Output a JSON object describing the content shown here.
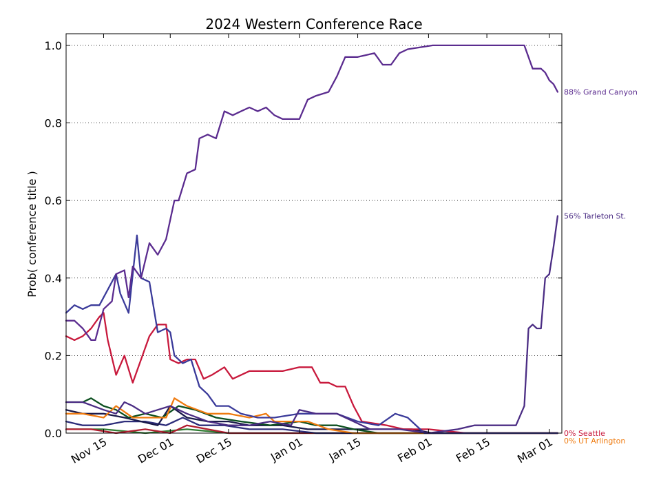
{
  "chart_data": {
    "type": "line",
    "title": "2024 Western Conference Race",
    "xlabel": "",
    "ylabel": "Prob( conference title )",
    "x_axis": {
      "start": "2023-11-06",
      "end": "2024-03-04",
      "ticks": [
        {
          "date": "2023-11-15",
          "label": "Nov 15"
        },
        {
          "date": "2023-12-01",
          "label": "Dec 01"
        },
        {
          "date": "2023-12-15",
          "label": "Dec 15"
        },
        {
          "date": "2024-01-01",
          "label": "Jan 01"
        },
        {
          "date": "2024-01-15",
          "label": "Jan 15"
        },
        {
          "date": "2024-02-01",
          "label": "Feb 01"
        },
        {
          "date": "2024-02-15",
          "label": "Feb 15"
        },
        {
          "date": "2024-03-01",
          "label": "Mar 01"
        }
      ]
    },
    "ylim": [
      0,
      1.03
    ],
    "y_ticks": [
      {
        "value": 0.0,
        "label": "0.0"
      },
      {
        "value": 0.2,
        "label": "0.2"
      },
      {
        "value": 0.4,
        "label": "0.4"
      },
      {
        "value": 0.6,
        "label": "0.6"
      },
      {
        "value": 0.8,
        "label": "0.8"
      },
      {
        "value": 1.0,
        "label": "1.0"
      }
    ],
    "grid": "horizontal dotted",
    "series": [
      {
        "name": "Grand Canyon",
        "color": "#5b2c8f",
        "end_label": "88% Grand Canyon",
        "points": [
          [
            "2023-11-06",
            0.29
          ],
          [
            "2023-11-08",
            0.29
          ],
          [
            "2023-11-10",
            0.27
          ],
          [
            "2023-11-12",
            0.24
          ],
          [
            "2023-11-13",
            0.24
          ],
          [
            "2023-11-15",
            0.32
          ],
          [
            "2023-11-17",
            0.34
          ],
          [
            "2023-11-18",
            0.41
          ],
          [
            "2023-11-20",
            0.42
          ],
          [
            "2023-11-21",
            0.35
          ],
          [
            "2023-11-22",
            0.43
          ],
          [
            "2023-11-24",
            0.4
          ],
          [
            "2023-11-26",
            0.49
          ],
          [
            "2023-11-28",
            0.46
          ],
          [
            "2023-11-30",
            0.5
          ],
          [
            "2023-12-02",
            0.6
          ],
          [
            "2023-12-03",
            0.6
          ],
          [
            "2023-12-05",
            0.67
          ],
          [
            "2023-12-07",
            0.68
          ],
          [
            "2023-12-08",
            0.76
          ],
          [
            "2023-12-10",
            0.77
          ],
          [
            "2023-12-12",
            0.76
          ],
          [
            "2023-12-14",
            0.83
          ],
          [
            "2023-12-16",
            0.82
          ],
          [
            "2023-12-18",
            0.83
          ],
          [
            "2023-12-20",
            0.84
          ],
          [
            "2023-12-22",
            0.83
          ],
          [
            "2023-12-24",
            0.84
          ],
          [
            "2023-12-26",
            0.82
          ],
          [
            "2023-12-28",
            0.81
          ],
          [
            "2023-12-30",
            0.81
          ],
          [
            "2024-01-01",
            0.81
          ],
          [
            "2024-01-03",
            0.86
          ],
          [
            "2024-01-05",
            0.87
          ],
          [
            "2024-01-08",
            0.88
          ],
          [
            "2024-01-10",
            0.92
          ],
          [
            "2024-01-12",
            0.97
          ],
          [
            "2024-01-15",
            0.97
          ],
          [
            "2024-01-19",
            0.98
          ],
          [
            "2024-01-21",
            0.95
          ],
          [
            "2024-01-23",
            0.95
          ],
          [
            "2024-01-25",
            0.98
          ],
          [
            "2024-01-27",
            0.99
          ],
          [
            "2024-02-02",
            1.0
          ],
          [
            "2024-02-10",
            1.0
          ],
          [
            "2024-02-20",
            1.0
          ],
          [
            "2024-02-24",
            1.0
          ],
          [
            "2024-02-26",
            0.94
          ],
          [
            "2024-02-28",
            0.94
          ],
          [
            "2024-02-29",
            0.93
          ],
          [
            "2024-03-01",
            0.91
          ],
          [
            "2024-03-02",
            0.9
          ],
          [
            "2024-03-03",
            0.88
          ]
        ]
      },
      {
        "name": "Tarleton St.",
        "color": "#4b2d84",
        "end_label": "56% Tarleton St.",
        "points": [
          [
            "2023-11-06",
            0.08
          ],
          [
            "2023-11-10",
            0.08
          ],
          [
            "2023-11-15",
            0.06
          ],
          [
            "2023-11-18",
            0.05
          ],
          [
            "2023-11-20",
            0.08
          ],
          [
            "2023-11-22",
            0.07
          ],
          [
            "2023-11-25",
            0.05
          ],
          [
            "2023-11-28",
            0.06
          ],
          [
            "2023-12-01",
            0.07
          ],
          [
            "2023-12-05",
            0.05
          ],
          [
            "2023-12-10",
            0.03
          ],
          [
            "2023-12-15",
            0.02
          ],
          [
            "2023-12-20",
            0.02
          ],
          [
            "2023-12-25",
            0.03
          ],
          [
            "2023-12-30",
            0.02
          ],
          [
            "2024-01-01",
            0.06
          ],
          [
            "2024-01-05",
            0.05
          ],
          [
            "2024-01-10",
            0.05
          ],
          [
            "2024-01-14",
            0.03
          ],
          [
            "2024-01-18",
            0.01
          ],
          [
            "2024-01-25",
            0.01
          ],
          [
            "2024-02-01",
            0.0
          ],
          [
            "2024-02-08",
            0.01
          ],
          [
            "2024-02-12",
            0.02
          ],
          [
            "2024-02-18",
            0.02
          ],
          [
            "2024-02-22",
            0.02
          ],
          [
            "2024-02-24",
            0.07
          ],
          [
            "2024-02-25",
            0.27
          ],
          [
            "2024-02-26",
            0.28
          ],
          [
            "2024-02-27",
            0.27
          ],
          [
            "2024-02-28",
            0.27
          ],
          [
            "2024-02-29",
            0.4
          ],
          [
            "2024-03-01",
            0.41
          ],
          [
            "2024-03-02",
            0.48
          ],
          [
            "2024-03-03",
            0.56
          ]
        ]
      },
      {
        "name": "",
        "color": "#3b3b9a",
        "end_label": "",
        "points": [
          [
            "2023-11-06",
            0.31
          ],
          [
            "2023-11-08",
            0.33
          ],
          [
            "2023-11-10",
            0.32
          ],
          [
            "2023-11-12",
            0.33
          ],
          [
            "2023-11-14",
            0.33
          ],
          [
            "2023-11-16",
            0.37
          ],
          [
            "2023-11-18",
            0.41
          ],
          [
            "2023-11-19",
            0.36
          ],
          [
            "2023-11-21",
            0.31
          ],
          [
            "2023-11-23",
            0.51
          ],
          [
            "2023-11-24",
            0.4
          ],
          [
            "2023-11-26",
            0.39
          ],
          [
            "2023-11-28",
            0.26
          ],
          [
            "2023-11-30",
            0.27
          ],
          [
            "2023-12-01",
            0.26
          ],
          [
            "2023-12-02",
            0.2
          ],
          [
            "2023-12-04",
            0.18
          ],
          [
            "2023-12-06",
            0.19
          ],
          [
            "2023-12-08",
            0.12
          ],
          [
            "2023-12-10",
            0.1
          ],
          [
            "2023-12-12",
            0.07
          ],
          [
            "2023-12-15",
            0.07
          ],
          [
            "2023-12-18",
            0.05
          ],
          [
            "2023-12-22",
            0.04
          ],
          [
            "2023-12-26",
            0.04
          ],
          [
            "2024-01-01",
            0.05
          ],
          [
            "2024-01-05",
            0.05
          ],
          [
            "2024-01-10",
            0.05
          ],
          [
            "2024-01-15",
            0.03
          ],
          [
            "2024-01-20",
            0.02
          ],
          [
            "2024-01-24",
            0.05
          ],
          [
            "2024-01-27",
            0.04
          ],
          [
            "2024-01-31",
            0.0
          ],
          [
            "2024-02-15",
            0.0
          ],
          [
            "2024-03-03",
            0.0
          ]
        ]
      },
      {
        "name": "Seattle",
        "color": "#c8193c",
        "end_label": "0% Seattle",
        "points": [
          [
            "2023-11-06",
            0.25
          ],
          [
            "2023-11-08",
            0.24
          ],
          [
            "2023-11-10",
            0.25
          ],
          [
            "2023-11-12",
            0.27
          ],
          [
            "2023-11-14",
            0.3
          ],
          [
            "2023-11-15",
            0.31
          ],
          [
            "2023-11-16",
            0.24
          ],
          [
            "2023-11-18",
            0.15
          ],
          [
            "2023-11-20",
            0.2
          ],
          [
            "2023-11-22",
            0.13
          ],
          [
            "2023-11-24",
            0.19
          ],
          [
            "2023-11-26",
            0.25
          ],
          [
            "2023-11-28",
            0.28
          ],
          [
            "2023-11-30",
            0.28
          ],
          [
            "2023-12-01",
            0.19
          ],
          [
            "2023-12-03",
            0.18
          ],
          [
            "2023-12-05",
            0.19
          ],
          [
            "2023-12-07",
            0.19
          ],
          [
            "2023-12-09",
            0.14
          ],
          [
            "2023-12-11",
            0.15
          ],
          [
            "2023-12-14",
            0.17
          ],
          [
            "2023-12-16",
            0.14
          ],
          [
            "2023-12-20",
            0.16
          ],
          [
            "2023-12-24",
            0.16
          ],
          [
            "2023-12-28",
            0.16
          ],
          [
            "2024-01-01",
            0.17
          ],
          [
            "2024-01-04",
            0.17
          ],
          [
            "2024-01-06",
            0.13
          ],
          [
            "2024-01-08",
            0.13
          ],
          [
            "2024-01-10",
            0.12
          ],
          [
            "2024-01-12",
            0.12
          ],
          [
            "2024-01-14",
            0.07
          ],
          [
            "2024-01-16",
            0.03
          ],
          [
            "2024-01-22",
            0.02
          ],
          [
            "2024-01-26",
            0.01
          ],
          [
            "2024-02-01",
            0.01
          ],
          [
            "2024-02-10",
            0.0
          ],
          [
            "2024-03-03",
            0.0
          ]
        ]
      },
      {
        "name": "UT Arlington",
        "color": "#ef7b10",
        "end_label": "0% UT Arlington",
        "points": [
          [
            "2023-11-06",
            0.05
          ],
          [
            "2023-11-10",
            0.05
          ],
          [
            "2023-11-15",
            0.04
          ],
          [
            "2023-11-18",
            0.07
          ],
          [
            "2023-11-22",
            0.04
          ],
          [
            "2023-11-26",
            0.04
          ],
          [
            "2023-11-30",
            0.04
          ],
          [
            "2023-12-02",
            0.09
          ],
          [
            "2023-12-05",
            0.07
          ],
          [
            "2023-12-10",
            0.05
          ],
          [
            "2023-12-15",
            0.05
          ],
          [
            "2023-12-20",
            0.04
          ],
          [
            "2023-12-24",
            0.05
          ],
          [
            "2023-12-26",
            0.03
          ],
          [
            "2023-12-30",
            0.03
          ],
          [
            "2024-01-03",
            0.03
          ],
          [
            "2024-01-08",
            0.01
          ],
          [
            "2024-01-14",
            0.0
          ],
          [
            "2024-03-03",
            0.0
          ]
        ]
      },
      {
        "name": "",
        "color": "#0b4f1f",
        "end_label": "",
        "points": [
          [
            "2023-11-06",
            0.08
          ],
          [
            "2023-11-10",
            0.08
          ],
          [
            "2023-11-12",
            0.09
          ],
          [
            "2023-11-15",
            0.07
          ],
          [
            "2023-11-18",
            0.06
          ],
          [
            "2023-11-21",
            0.04
          ],
          [
            "2023-11-25",
            0.05
          ],
          [
            "2023-11-29",
            0.04
          ],
          [
            "2023-12-03",
            0.07
          ],
          [
            "2023-12-07",
            0.06
          ],
          [
            "2023-12-12",
            0.04
          ],
          [
            "2023-12-18",
            0.03
          ],
          [
            "2023-12-25",
            0.02
          ],
          [
            "2024-01-01",
            0.03
          ],
          [
            "2024-01-05",
            0.02
          ],
          [
            "2024-01-10",
            0.02
          ],
          [
            "2024-01-14",
            0.01
          ],
          [
            "2024-01-20",
            0.0
          ],
          [
            "2024-03-03",
            0.0
          ]
        ]
      },
      {
        "name": "",
        "color": "#1a1a4a",
        "end_label": "",
        "points": [
          [
            "2023-11-06",
            0.06
          ],
          [
            "2023-11-10",
            0.05
          ],
          [
            "2023-11-15",
            0.05
          ],
          [
            "2023-11-20",
            0.04
          ],
          [
            "2023-11-24",
            0.03
          ],
          [
            "2023-11-28",
            0.02
          ],
          [
            "2023-12-01",
            0.07
          ],
          [
            "2023-12-05",
            0.04
          ],
          [
            "2023-12-10",
            0.03
          ],
          [
            "2023-12-15",
            0.03
          ],
          [
            "2023-12-20",
            0.02
          ],
          [
            "2023-12-28",
            0.02
          ],
          [
            "2024-01-03",
            0.01
          ],
          [
            "2024-01-10",
            0.01
          ],
          [
            "2024-01-18",
            0.01
          ],
          [
            "2024-01-28",
            0.01
          ],
          [
            "2024-02-02",
            0.0
          ],
          [
            "2024-03-03",
            0.0
          ]
        ]
      },
      {
        "name": "",
        "color": "#2d2d7a",
        "end_label": "",
        "points": [
          [
            "2023-11-06",
            0.03
          ],
          [
            "2023-11-10",
            0.02
          ],
          [
            "2023-11-15",
            0.02
          ],
          [
            "2023-11-20",
            0.03
          ],
          [
            "2023-11-25",
            0.03
          ],
          [
            "2023-11-30",
            0.02
          ],
          [
            "2023-12-04",
            0.04
          ],
          [
            "2023-12-08",
            0.02
          ],
          [
            "2023-12-14",
            0.02
          ],
          [
            "2023-12-20",
            0.01
          ],
          [
            "2023-12-28",
            0.01
          ],
          [
            "2024-01-05",
            0.0
          ],
          [
            "2024-03-03",
            0.0
          ]
        ]
      },
      {
        "name": "",
        "color": "#b01c2e",
        "end_label": "",
        "points": [
          [
            "2023-11-06",
            0.01
          ],
          [
            "2023-11-12",
            0.01
          ],
          [
            "2023-11-18",
            0.0
          ],
          [
            "2023-11-25",
            0.01
          ],
          [
            "2023-12-01",
            0.0
          ],
          [
            "2023-12-05",
            0.02
          ],
          [
            "2023-12-10",
            0.01
          ],
          [
            "2023-12-15",
            0.0
          ],
          [
            "2024-03-03",
            0.0
          ]
        ]
      },
      {
        "name": "",
        "color": "#2e7d32",
        "end_label": "",
        "points": [
          [
            "2023-11-06",
            0.01
          ],
          [
            "2023-11-15",
            0.01
          ],
          [
            "2023-11-25",
            0.0
          ],
          [
            "2023-12-05",
            0.01
          ],
          [
            "2023-12-15",
            0.0
          ],
          [
            "2024-03-03",
            0.0
          ]
        ]
      }
    ]
  }
}
